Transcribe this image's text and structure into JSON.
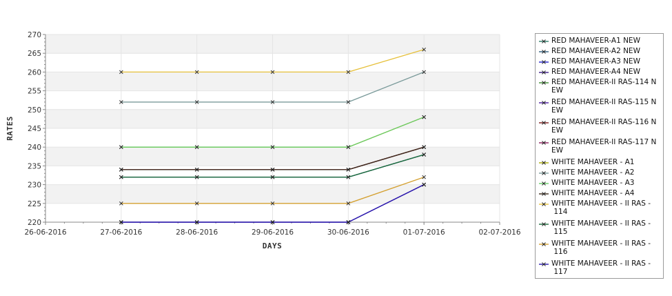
{
  "chart_data": {
    "type": "line",
    "xlabel": "DAYS",
    "ylabel": "RATES",
    "x_ticks": [
      "26-06-2016",
      "27-06-2016",
      "28-06-2016",
      "29-06-2016",
      "30-06-2016",
      "01-07-2016",
      "02-07-2016"
    ],
    "x": [
      "27-06-2016",
      "28-06-2016",
      "29-06-2016",
      "30-06-2016",
      "01-07-2016"
    ],
    "ylim": [
      220,
      270
    ],
    "y_ticks": [
      220,
      225,
      230,
      235,
      240,
      245,
      250,
      255,
      260,
      265,
      270
    ],
    "grid": true,
    "legend_position": "right",
    "series": [
      {
        "name": "RED MAHAVEER-A1 NEW",
        "values": [
          232,
          232,
          232,
          232,
          238
        ],
        "color": "#2e7d6a"
      },
      {
        "name": "RED MAHAVEER-A2 NEW",
        "values": [
          232,
          232,
          232,
          232,
          238
        ],
        "color": "#2e5e7d"
      },
      {
        "name": "RED MAHAVEER-A3 NEW",
        "values": [
          220,
          220,
          220,
          220,
          230
        ],
        "color": "#2222cc"
      },
      {
        "name": "RED MAHAVEER-A4 NEW",
        "values": [
          220,
          220,
          220,
          220,
          230
        ],
        "color": "#3a1a88"
      },
      {
        "name": "RED MAHAVEER-II RAS-114 NEW",
        "values": [
          234,
          234,
          234,
          234,
          240
        ],
        "color": "#3c8a2e"
      },
      {
        "name": "RED MAHAVEER-II RAS-115 NEW",
        "values": [
          220,
          220,
          220,
          220,
          230
        ],
        "color": "#4a1aa0"
      },
      {
        "name": "RED MAHAVEER-II RAS-116 NEW",
        "values": [
          234,
          234,
          234,
          234,
          240
        ],
        "color": "#7a1a1a"
      },
      {
        "name": "RED MAHAVEER-II RAS-117 NEW",
        "values": [
          234,
          234,
          234,
          234,
          240
        ],
        "color": "#8a1a5a"
      },
      {
        "name": "WHITE MAHAVEER - A1",
        "values": [
          240,
          240,
          240,
          240,
          248
        ],
        "color": "#a8a800"
      },
      {
        "name": "WHITE MAHAVEER - A2",
        "values": [
          252,
          252,
          252,
          252,
          260
        ],
        "color": "#7a9a9a"
      },
      {
        "name": "WHITE MAHAVEER - A3",
        "values": [
          240,
          240,
          240,
          240,
          248
        ],
        "color": "#66cc66"
      },
      {
        "name": "WHITE MAHAVEER - A4",
        "values": [
          234,
          234,
          234,
          234,
          240
        ],
        "color": "#3a2a1a"
      },
      {
        "name": "WHITE MAHAVEER - II RAS - 114",
        "values": [
          260,
          260,
          260,
          260,
          266
        ],
        "color": "#e6c03a"
      },
      {
        "name": "WHITE MAHAVEER - II RAS - 115",
        "values": [
          232,
          232,
          232,
          232,
          238
        ],
        "color": "#1a6a3a"
      },
      {
        "name": "WHITE MAHAVEER - II RAS - 116",
        "values": [
          225,
          225,
          225,
          225,
          232
        ],
        "color": "#d4a030"
      },
      {
        "name": "WHITE MAHAVEER - II RAS - 117",
        "values": [
          220,
          220,
          220,
          220,
          230
        ],
        "color": "#2a1ab0"
      }
    ]
  },
  "legend": {
    "labels": [
      "RED MAHAVEER-A1 NEW",
      "RED MAHAVEER-A2 NEW",
      "RED MAHAVEER-A3 NEW",
      "RED MAHAVEER-A4 NEW",
      "RED MAHAVEER-II RAS-114 N\nEW",
      "RED MAHAVEER-II RAS-115 N\nEW",
      "RED MAHAVEER-II RAS-116 N\nEW",
      "RED MAHAVEER-II RAS-117 N\nEW",
      "WHITE MAHAVEER - A1",
      "WHITE MAHAVEER - A2",
      "WHITE MAHAVEER - A3",
      "WHITE MAHAVEER - A4",
      "WHITE MAHAVEER - II RAS -\n 114",
      "WHITE MAHAVEER - II RAS -\n 115",
      "WHITE MAHAVEER - II RAS -\n 116",
      "WHITE MAHAVEER - II RAS -\n 117"
    ]
  }
}
